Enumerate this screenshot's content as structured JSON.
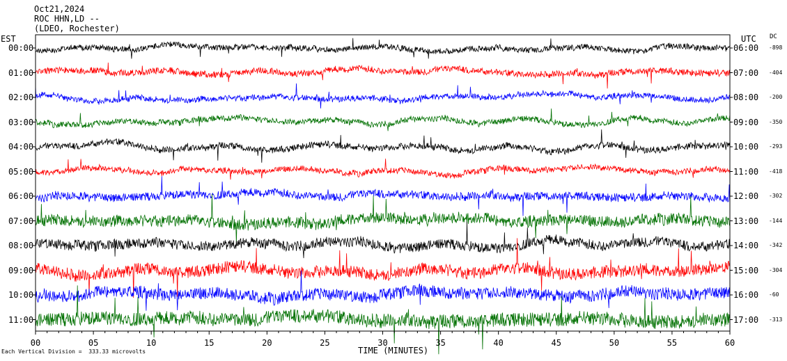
{
  "header": {
    "date": "Oct21,2024",
    "station": "ROC HHN,LD --",
    "network": "(LDEO, Rochester)"
  },
  "axes": {
    "left_title": "EST",
    "right_title": "UTC",
    "dc_title": "DC",
    "x_title": "TIME (MINUTES)",
    "footnote": "Each Vertical Division =  333.33 microvolts"
  },
  "chart_data": {
    "type": "line",
    "title": "",
    "xlabel": "TIME (MINUTES)",
    "ylabel": "",
    "xlim": [
      0,
      60
    ],
    "x_ticks": [
      "00",
      "05",
      "10",
      "15",
      "20",
      "25",
      "30",
      "35",
      "40",
      "45",
      "50",
      "55",
      "60"
    ],
    "series_colors": [
      "#000000",
      "#ff0000",
      "#0000ff",
      "#007000"
    ],
    "rows": [
      {
        "est": "00:00",
        "utc": "06:00",
        "dc": "-898",
        "color": "#000000",
        "noise": 0.9
      },
      {
        "est": "01:00",
        "utc": "07:00",
        "dc": "-404",
        "color": "#ff0000",
        "noise": 1.0
      },
      {
        "est": "02:00",
        "utc": "08:00",
        "dc": "-200",
        "color": "#0000ff",
        "noise": 0.9
      },
      {
        "est": "03:00",
        "utc": "09:00",
        "dc": "-350",
        "color": "#007000",
        "noise": 0.9
      },
      {
        "est": "04:00",
        "utc": "10:00",
        "dc": "-293",
        "color": "#000000",
        "noise": 1.0
      },
      {
        "est": "05:00",
        "utc": "11:00",
        "dc": "-418",
        "color": "#ff0000",
        "noise": 0.9
      },
      {
        "est": "06:00",
        "utc": "12:00",
        "dc": "-302",
        "color": "#0000ff",
        "noise": 1.3
      },
      {
        "est": "07:00",
        "utc": "13:00",
        "dc": "-144",
        "color": "#007000",
        "noise": 1.8
      },
      {
        "est": "08:00",
        "utc": "14:00",
        "dc": "-342",
        "color": "#000000",
        "noise": 1.6
      },
      {
        "est": "09:00",
        "utc": "15:00",
        "dc": "-304",
        "color": "#ff0000",
        "noise": 1.9
      },
      {
        "est": "10:00",
        "utc": "16:00",
        "dc": "-60",
        "color": "#0000ff",
        "noise": 1.9
      },
      {
        "est": "11:00",
        "utc": "17:00",
        "dc": "-313",
        "color": "#007000",
        "noise": 2.2
      }
    ]
  }
}
